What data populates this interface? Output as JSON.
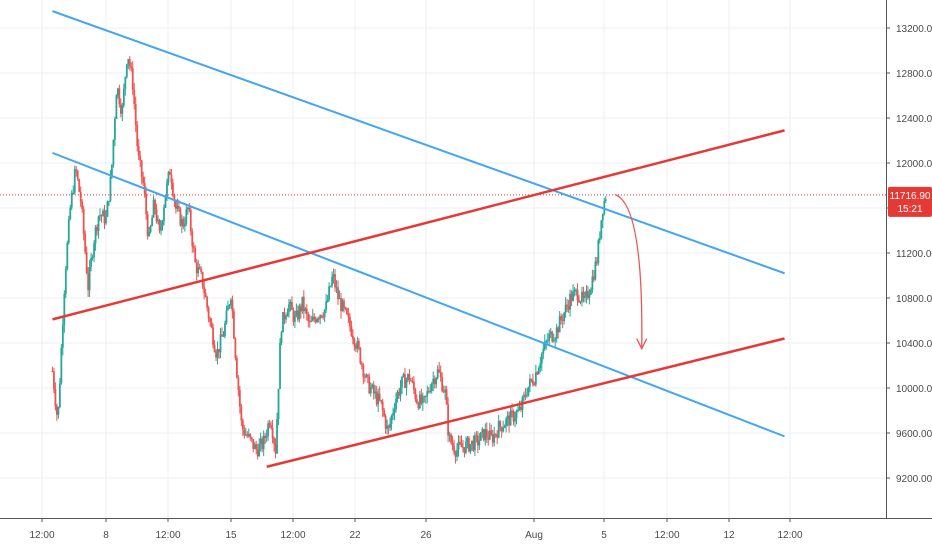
{
  "chart_data": {
    "type": "candlestick",
    "y_axis": {
      "ticks": [
        9200,
        9600,
        10000,
        10400,
        10800,
        11200,
        11600,
        12000,
        12400,
        12800,
        13200
      ],
      "tick_labels": [
        "9200.00",
        "9600.00",
        "10000.00",
        "10400.00",
        "10800.00",
        "11200.00",
        "11600.00",
        "12000.00",
        "12400.00",
        "12800.00",
        "13200.00"
      ],
      "range": [
        8750,
        13350
      ]
    },
    "x_axis": {
      "tick_labels": [
        "12:00",
        "8",
        "12:00",
        "15",
        "12:00",
        "22",
        "26",
        "Aug",
        "5",
        "12:00",
        "12",
        "12:00"
      ]
    },
    "current_price": 11716.9,
    "current_price_label": "11716.90",
    "countdown_label": "15:21",
    "colors": {
      "up": "#26a69a",
      "down": "#ef5350",
      "trendline_blue": "#42a5f5",
      "trendline_red": "#e53935",
      "price_badge": "#e53935",
      "grid": "#eceff2",
      "axis_text": "#4a4a4a"
    },
    "annotations": {
      "blue_trendlines": [
        {
          "from": {
            "x": "5 Jul",
            "y": 13350
          },
          "to": {
            "x": "15 Aug",
            "y": 11020
          }
        },
        {
          "from": {
            "x": "5 Jul",
            "y": 12090
          },
          "to": {
            "x": "15 Aug",
            "y": 9570
          }
        }
      ],
      "red_trendlines": [
        {
          "from": {
            "x": "5 Jul",
            "y": 10610
          },
          "to": {
            "x": "15 Aug",
            "y": 12290
          }
        },
        {
          "from": {
            "x": "17 Jul",
            "y": 9300
          },
          "to": {
            "x": "15 Aug",
            "y": 10440
          }
        }
      ],
      "projection_arrow": {
        "from": {
          "x": "5 Aug 12:00",
          "y": 11720
        },
        "to": {
          "x": "7 Aug",
          "y": 10350
        }
      }
    }
  }
}
